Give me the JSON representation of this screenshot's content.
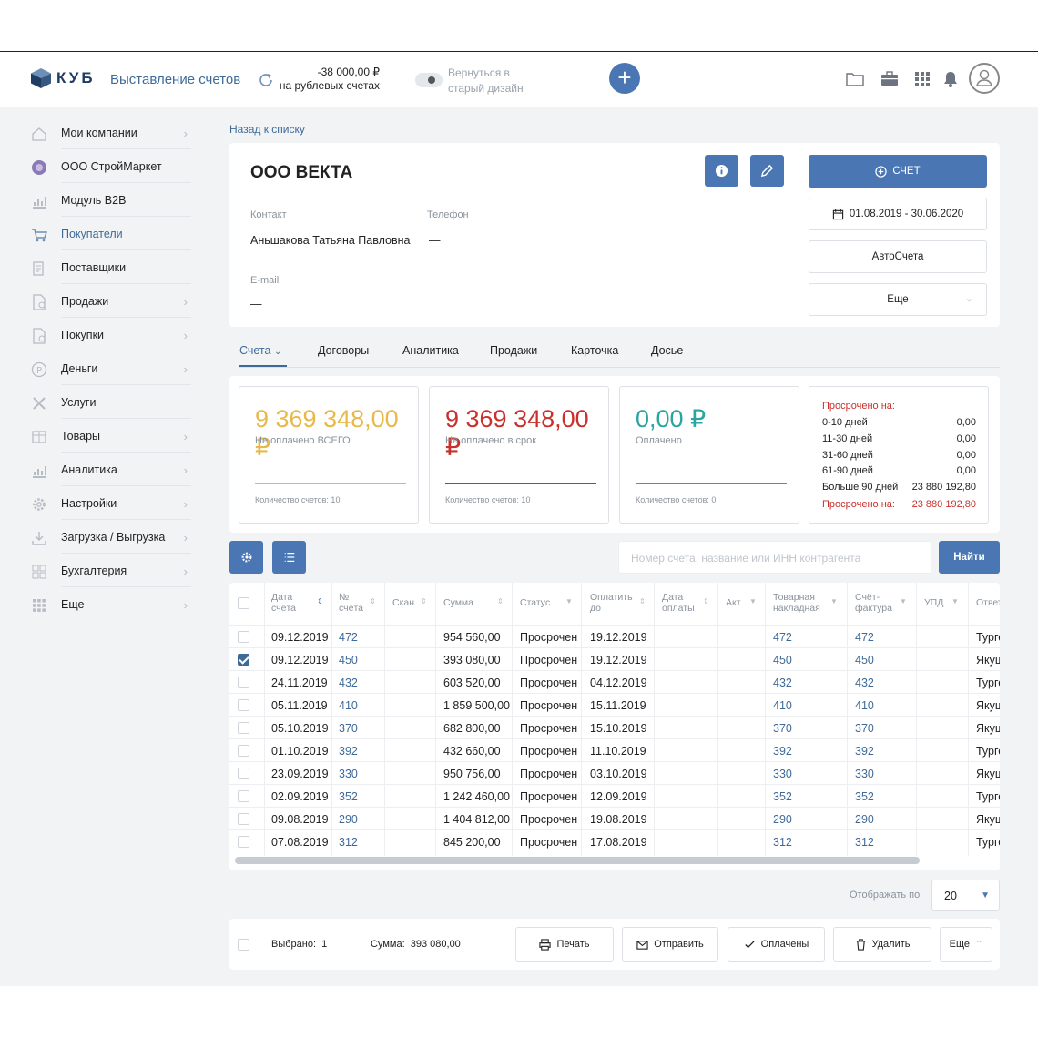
{
  "header": {
    "logo_text": "КУБ",
    "app_name": "Выставление счетов",
    "balance_amount": "-38 000,00 ₽",
    "balance_label": "на рублевых счетах",
    "old_design": "Вернуться в старый дизайн",
    "add_symbol": "+"
  },
  "sidebar": {
    "items": [
      {
        "label": "Мои компании",
        "icon": "home-icon",
        "chevron": true
      },
      {
        "label": "ООО СтройМаркет",
        "icon": "company-logo-icon",
        "chevron": false
      },
      {
        "label": "Модуль B2B",
        "icon": "chart-icon",
        "chevron": false
      },
      {
        "label": "Покупатели",
        "icon": "cart-icon",
        "chevron": false
      },
      {
        "label": "Поставщики",
        "icon": "truck-icon",
        "chevron": false
      },
      {
        "label": "Продажи",
        "icon": "document-icon",
        "chevron": true
      },
      {
        "label": "Покупки",
        "icon": "document-icon",
        "chevron": true
      },
      {
        "label": "Деньги",
        "icon": "coin-icon",
        "chevron": true
      },
      {
        "label": "Услуги",
        "icon": "tools-icon",
        "chevron": false
      },
      {
        "label": "Товары",
        "icon": "box-icon",
        "chevron": true
      },
      {
        "label": "Аналитика",
        "icon": "chart-icon",
        "chevron": true
      },
      {
        "label": "Настройки",
        "icon": "gear-icon",
        "chevron": true
      },
      {
        "label": "Загрузка / Выгрузка",
        "icon": "download-icon",
        "chevron": true
      },
      {
        "label": "Бухгалтерия",
        "icon": "grid-icon",
        "chevron": true
      },
      {
        "label": "Еще",
        "icon": "apps-icon",
        "chevron": true
      }
    ]
  },
  "back_link": "Назад к списку",
  "company": {
    "name": "ООО ВЕКТА",
    "contact_label": "Контакт",
    "contact_value": "Аньшакова Татьяна Павловна",
    "phone_label": "Телефон",
    "phone_value": "—",
    "email_label": "E-mail",
    "email_value": "—"
  },
  "actions": {
    "invoice": "СЧЕТ",
    "date_range": "01.08.2019 - 30.06.2020",
    "auto_invoices": "АвтоСчета",
    "more": "Еще"
  },
  "tabs": [
    "Счета",
    "Договоры",
    "Аналитика",
    "Продажи",
    "Карточка",
    "Досье"
  ],
  "summary": {
    "cards": [
      {
        "amount": "9 369 348,00 ₽",
        "label": "Не оплачено ВСЕГО",
        "count": "Количество счетов: 10",
        "color": "#e8b949"
      },
      {
        "amount": "9 369 348,00 ₽",
        "label": "Не оплачено в срок",
        "count": "Количество счетов: 10",
        "color": "#c9302c"
      },
      {
        "amount": "0,00 ₽",
        "label": "Оплачено",
        "count": "Количество счетов: 0",
        "color": "#2aa5a0"
      }
    ],
    "overdue": {
      "title": "Просрочено на:",
      "rows": [
        {
          "label": "0-10 дней",
          "value": "0,00"
        },
        {
          "label": "11-30 дней",
          "value": "0,00"
        },
        {
          "label": "31-60 дней",
          "value": "0,00"
        },
        {
          "label": "61-90 дней",
          "value": "0,00"
        },
        {
          "label": "Больше 90 дней",
          "value": "23 880 192,80"
        }
      ],
      "total_label": "Просрочено на:",
      "total_value": "23 880 192,80"
    }
  },
  "search": {
    "placeholder": "Номер счета, название или ИНН контрагента",
    "button": "Найти"
  },
  "table": {
    "headers": [
      "Дата счёта",
      "№ счёта",
      "Скан",
      "Сумма",
      "Статус",
      "Оплатить до",
      "Дата оплаты",
      "Акт",
      "Товарная накладная",
      "Счёт-фактура",
      "УПД",
      "Ответ"
    ],
    "rows": [
      {
        "date": "09.12.2019",
        "num": "472",
        "sum": "954 560,00",
        "status": "Просрочен",
        "due": "19.12.2019",
        "waybill": "472",
        "invoice": "472",
        "resp": "Турге",
        "checked": false
      },
      {
        "date": "09.12.2019",
        "num": "450",
        "sum": "393 080,00",
        "status": "Просрочен",
        "due": "19.12.2019",
        "waybill": "450",
        "invoice": "450",
        "resp": "Якуш",
        "checked": true
      },
      {
        "date": "24.11.2019",
        "num": "432",
        "sum": "603 520,00",
        "status": "Просрочен",
        "due": "04.12.2019",
        "waybill": "432",
        "invoice": "432",
        "resp": "Турге",
        "checked": false
      },
      {
        "date": "05.11.2019",
        "num": "410",
        "sum": "1 859 500,00",
        "status": "Просрочен",
        "due": "15.11.2019",
        "waybill": "410",
        "invoice": "410",
        "resp": "Якуш",
        "checked": false
      },
      {
        "date": "05.10.2019",
        "num": "370",
        "sum": "682 800,00",
        "status": "Просрочен",
        "due": "15.10.2019",
        "waybill": "370",
        "invoice": "370",
        "resp": "Якуш",
        "checked": false
      },
      {
        "date": "01.10.2019",
        "num": "392",
        "sum": "432 660,00",
        "status": "Просрочен",
        "due": "11.10.2019",
        "waybill": "392",
        "invoice": "392",
        "resp": "Турге",
        "checked": false
      },
      {
        "date": "23.09.2019",
        "num": "330",
        "sum": "950 756,00",
        "status": "Просрочен",
        "due": "03.10.2019",
        "waybill": "330",
        "invoice": "330",
        "resp": "Якуш",
        "checked": false
      },
      {
        "date": "02.09.2019",
        "num": "352",
        "sum": "1 242 460,00",
        "status": "Просрочен",
        "due": "12.09.2019",
        "waybill": "352",
        "invoice": "352",
        "resp": "Турге",
        "checked": false
      },
      {
        "date": "09.08.2019",
        "num": "290",
        "sum": "1 404 812,00",
        "status": "Просрочен",
        "due": "19.08.2019",
        "waybill": "290",
        "invoice": "290",
        "resp": "Якуш",
        "checked": false
      },
      {
        "date": "07.08.2019",
        "num": "312",
        "sum": "845 200,00",
        "status": "Просрочен",
        "due": "17.08.2019",
        "waybill": "312",
        "invoice": "312",
        "resp": "Турге",
        "checked": false
      }
    ]
  },
  "pagination": {
    "label": "Отображать по",
    "value": "20"
  },
  "bottom": {
    "selected_label": "Выбрано:",
    "selected_count": "1",
    "sum_label": "Сумма:",
    "sum_value": "393 080,00",
    "print": "Печать",
    "send": "Отправить",
    "paid": "Оплачены",
    "delete": "Удалить",
    "more": "Еще"
  },
  "colors": {
    "accent": "#4a77b4",
    "link": "#3e6a99",
    "red": "#c9302c",
    "yellow": "#e8b949",
    "teal": "#2aa5a0"
  }
}
